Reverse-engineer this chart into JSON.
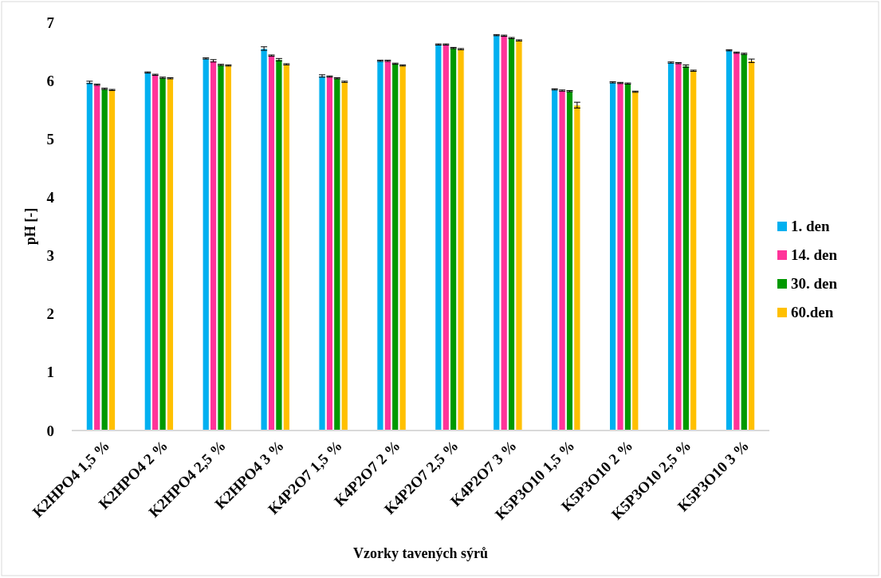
{
  "chart_data": {
    "type": "bar",
    "xlabel": "Vzorky tavených sýrů",
    "ylabel": "pH [-]",
    "ylim": [
      0,
      7
    ],
    "yticks": [
      0,
      1,
      2,
      3,
      4,
      5,
      6,
      7
    ],
    "grid": false,
    "legend": "right",
    "categories": [
      "K2HPO4 1,5 %",
      "K2HPO4 2 %",
      "K2HPO4 2,5 %",
      "K2HPO4 3 %",
      "K4P2O7 1,5 %",
      "K4P2O7 2 %",
      "K4P2O7 2,5 %",
      "K4P2O7 3 %",
      "K5P3O10 1,5 %",
      "K5P3O10 2 %",
      "K5P3O10 2,5 %",
      "K5P3O10 3 %"
    ],
    "series": [
      {
        "name": "1. den",
        "color": "#00b0f0",
        "values": [
          5.97,
          6.14,
          6.38,
          6.55,
          6.08,
          6.34,
          6.62,
          6.78,
          5.85,
          5.97,
          6.31,
          6.52
        ],
        "errors": [
          0.02,
          0.01,
          0.01,
          0.03,
          0.02,
          0.01,
          0.01,
          0.01,
          0.01,
          0.01,
          0.01,
          0.01
        ]
      },
      {
        "name": "14. den",
        "color": "#ff3399",
        "values": [
          5.93,
          6.1,
          6.34,
          6.43,
          6.07,
          6.34,
          6.62,
          6.77,
          5.83,
          5.96,
          6.3,
          6.48
        ],
        "errors": [
          0.01,
          0.01,
          0.02,
          0.01,
          0.01,
          0.01,
          0.01,
          0.01,
          0.01,
          0.01,
          0.01,
          0.01
        ]
      },
      {
        "name": "30. den",
        "color": "#009900",
        "values": [
          5.86,
          6.05,
          6.27,
          6.36,
          6.04,
          6.29,
          6.56,
          6.73,
          5.82,
          5.95,
          6.25,
          6.46
        ],
        "errors": [
          0.01,
          0.01,
          0.01,
          0.02,
          0.01,
          0.01,
          0.01,
          0.01,
          0.01,
          0.01,
          0.02,
          0.01
        ]
      },
      {
        "name": "60.den",
        "color": "#ffc000",
        "values": [
          5.84,
          6.04,
          6.26,
          6.28,
          5.98,
          6.26,
          6.54,
          6.69,
          5.58,
          5.81,
          6.17,
          6.34
        ],
        "errors": [
          0.01,
          0.01,
          0.01,
          0.01,
          0.01,
          0.01,
          0.01,
          0.01,
          0.05,
          0.01,
          0.01,
          0.03
        ]
      }
    ]
  }
}
